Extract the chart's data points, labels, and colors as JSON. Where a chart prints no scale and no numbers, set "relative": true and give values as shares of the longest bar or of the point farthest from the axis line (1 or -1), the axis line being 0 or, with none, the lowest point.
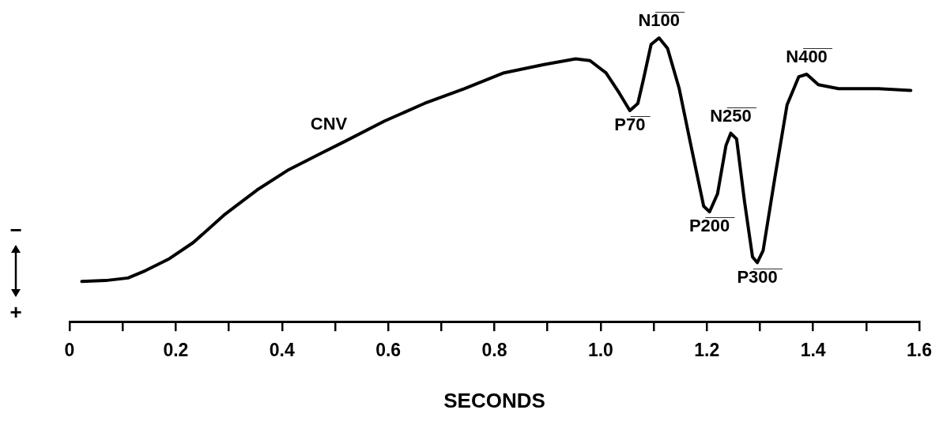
{
  "chart_data": {
    "type": "line",
    "relative": true,
    "xlabel": "SECONDS",
    "xlim": [
      0,
      1.6
    ],
    "xticks": [
      0,
      {
        "value": 0.1,
        "label": null
      },
      0.2,
      {
        "value": 0.3,
        "label": null
      },
      0.4,
      {
        "value": 0.5,
        "label": null
      },
      0.6,
      {
        "value": 0.7,
        "label": null
      },
      0.8,
      {
        "value": 0.9,
        "label": null
      },
      {
        "value": 1,
        "label": "1.0"
      },
      {
        "value": 1.1,
        "label": null
      },
      1.2,
      {
        "value": 1.3,
        "label": null
      },
      1.4,
      {
        "value": 1.5,
        "label": null
      },
      1.6
    ],
    "grid": false,
    "legend": false,
    "marker": "none",
    "line_style": "solid",
    "tick_labels": "x",
    "series": [
      {
        "color": "#000000",
        "x": [
          0.023,
          0.068,
          0.11,
          0.143,
          0.188,
          0.233,
          0.293,
          0.353,
          0.413,
          0.473,
          0.518,
          0.593,
          0.668,
          0.743,
          0.818,
          0.893,
          0.953,
          0.98,
          1.01,
          1.035,
          1.055,
          1.07,
          1.08,
          1.095,
          1.11,
          1.126,
          1.148,
          1.17,
          1.194,
          1.205,
          1.22,
          1.236,
          1.245,
          1.256,
          1.271,
          1.286,
          1.295,
          1.306,
          1.328,
          1.351,
          1.373,
          1.388,
          1.41,
          1.448,
          1.523,
          1.584
        ],
        "values": [
          0.142,
          0.145,
          0.154,
          0.18,
          0.222,
          0.279,
          0.379,
          0.464,
          0.536,
          0.593,
          0.635,
          0.707,
          0.769,
          0.821,
          0.877,
          0.906,
          0.926,
          0.92,
          0.877,
          0.806,
          0.744,
          0.769,
          0.849,
          0.977,
          1.0,
          0.963,
          0.821,
          0.621,
          0.407,
          0.387,
          0.45,
          0.621,
          0.664,
          0.644,
          0.422,
          0.228,
          0.208,
          0.251,
          0.507,
          0.764,
          0.863,
          0.872,
          0.835,
          0.821,
          0.821,
          0.815
        ]
      }
    ],
    "annotations": [
      {
        "text": "CNV",
        "x": 0.518,
        "y": 0.635
      },
      {
        "text": "P7̅0̅",
        "x": 1.055,
        "y": 0.744
      },
      {
        "text": "N1̅0̅0̅",
        "x": 1.11,
        "y": 1.0
      },
      {
        "text": "P2̅0̅0̅",
        "x": 1.205,
        "y": 0.387
      },
      {
        "text": "N2̅5̅0̅",
        "x": 1.245,
        "y": 0.664
      },
      {
        "text": "P3̅0̅0̅",
        "x": 1.295,
        "y": 0.208
      },
      {
        "text": "N4̅0̅0̅",
        "x": 1.388,
        "y": 0.872
      },
      "−",
      "+"
    ]
  }
}
